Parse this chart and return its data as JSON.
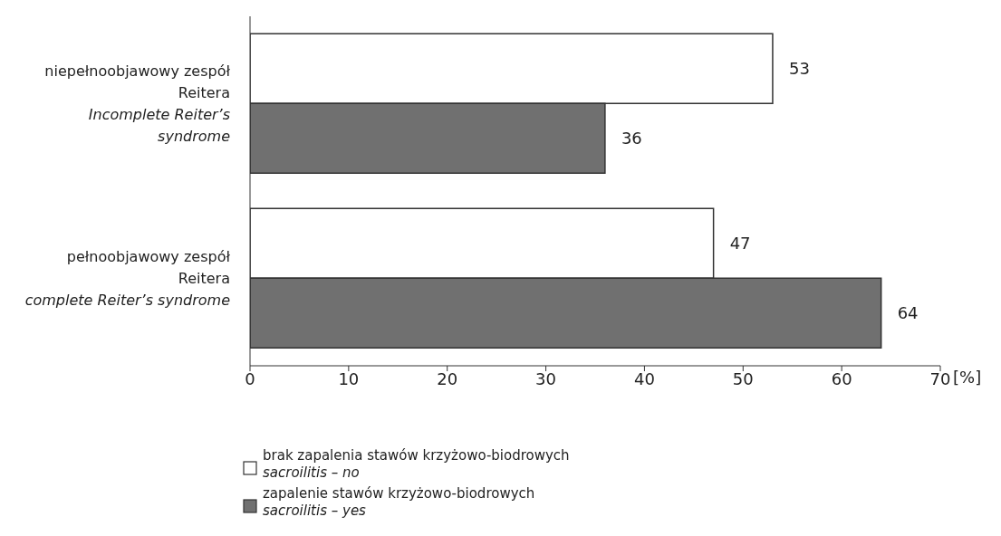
{
  "chart_data": {
    "type": "bar",
    "orientation": "horizontal",
    "categories": [
      "niepełnoobjawowy zespół\nReitera\n\nIncomplete Reiter’s\nsyndrome",
      "pełnoobjawowy zespół\nReitera\n\ncomplete Reiter’s syndrome"
    ],
    "series": [
      {
        "name": "brak zapalenia stawów krzyżowo-biodrowych\n\nsacroilitis – no",
        "color": "#ffffff",
        "values": [
          53,
          47
        ]
      },
      {
        "name": "zapalenie stawów krzyżowo-biodrowych\n\nsacroilitis – yes",
        "color": "#707070",
        "values": [
          36,
          64
        ]
      }
    ],
    "xlabel": "[%]",
    "xlim": [
      0,
      70
    ],
    "xticks": [
      0,
      10,
      20,
      30,
      40,
      50,
      60,
      70
    ],
    "data_labels": true,
    "legend": "bottom",
    "grid": false
  }
}
